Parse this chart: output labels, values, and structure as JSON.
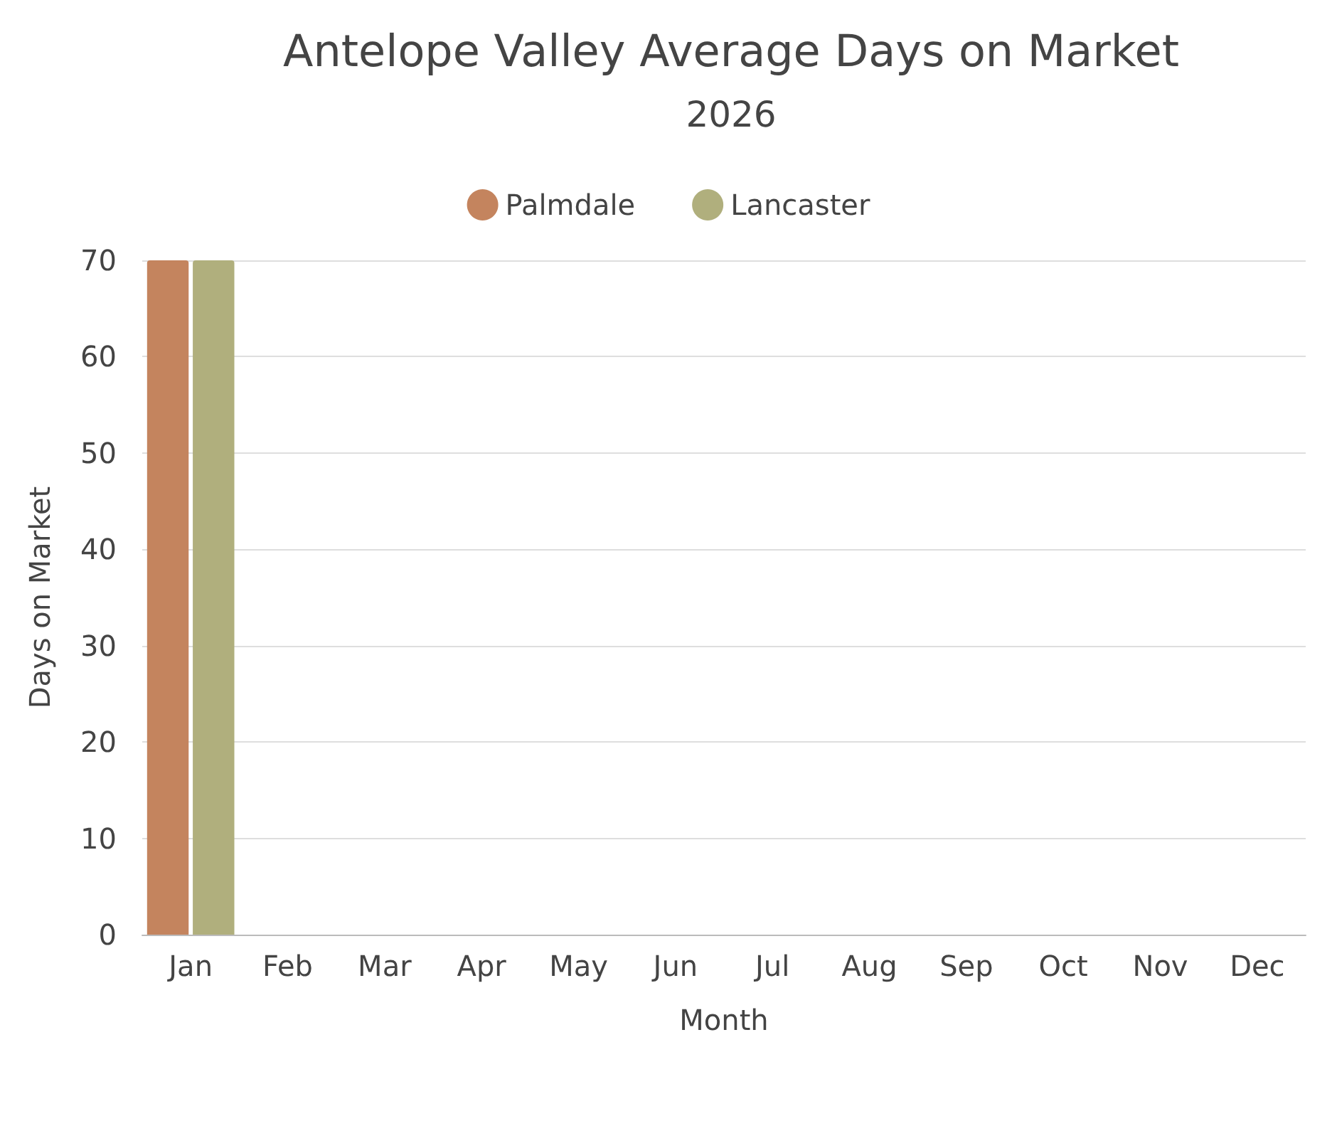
{
  "chart_data": {
    "type": "bar",
    "title": "Antelope Valley Average Days on Market",
    "subtitle": "2026",
    "xlabel": "Month",
    "ylabel": "Days on Market",
    "categories": [
      "Jan",
      "Feb",
      "Mar",
      "Apr",
      "May",
      "Jun",
      "Jul",
      "Aug",
      "Sep",
      "Oct",
      "Nov",
      "Dec"
    ],
    "series": [
      {
        "name": "Palmdale",
        "color": "#c4845e",
        "values": [
          70,
          null,
          null,
          null,
          null,
          null,
          null,
          null,
          null,
          null,
          null,
          null
        ]
      },
      {
        "name": "Lancaster",
        "color": "#b0af7d",
        "values": [
          70,
          null,
          null,
          null,
          null,
          null,
          null,
          null,
          null,
          null,
          null,
          null
        ]
      }
    ],
    "ylim": [
      0,
      70
    ],
    "yticks": [
      0,
      10,
      20,
      30,
      40,
      50,
      60,
      70
    ],
    "grid": "y",
    "legend": "top"
  }
}
